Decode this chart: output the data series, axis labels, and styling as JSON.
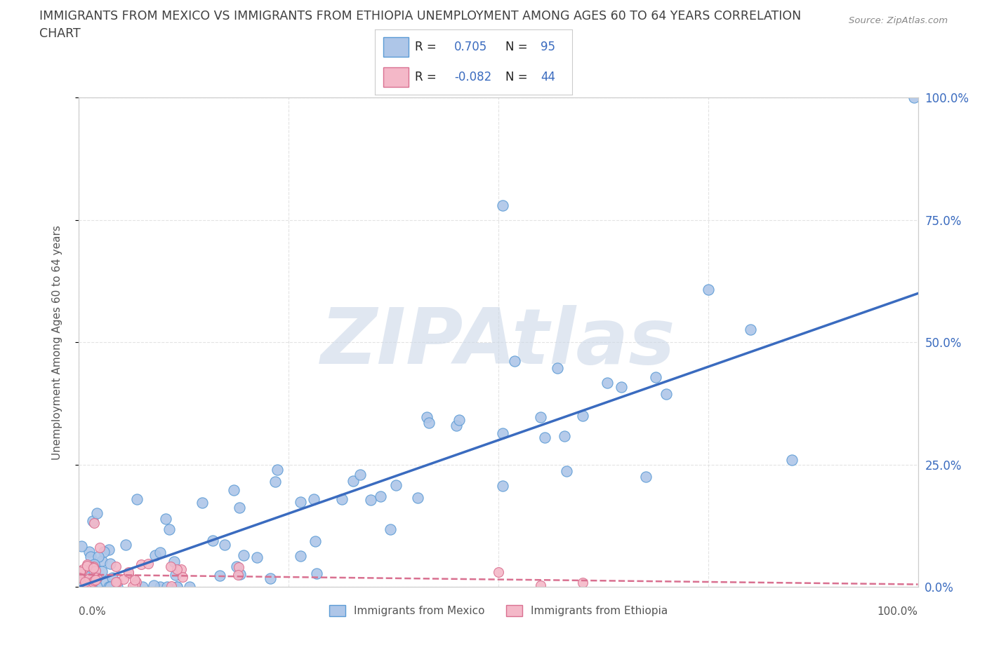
{
  "title_line1": "IMMIGRANTS FROM MEXICO VS IMMIGRANTS FROM ETHIOPIA UNEMPLOYMENT AMONG AGES 60 TO 64 YEARS CORRELATION",
  "title_line2": "CHART",
  "source": "Source: ZipAtlas.com",
  "ylabel": "Unemployment Among Ages 60 to 64 years",
  "ytick_values": [
    0,
    25,
    50,
    75,
    100
  ],
  "xtick_values": [
    0,
    25,
    50,
    75,
    100
  ],
  "series_mexico": {
    "label": "Immigrants from Mexico",
    "color": "#aec6e8",
    "edge_color": "#5b9bd5",
    "R": 0.705,
    "N": 95,
    "trend_color": "#3a6bbf",
    "trend_style": "-"
  },
  "series_ethiopia": {
    "label": "Immigrants from Ethiopia",
    "color": "#f4b8c8",
    "edge_color": "#d97090",
    "R": -0.082,
    "N": 44,
    "trend_color": "#d97090",
    "trend_style": "--"
  },
  "watermark": "ZIPAtlas",
  "watermark_color": "#ccd8e8",
  "background_color": "#ffffff",
  "grid_color": "#d8d8d8",
  "title_color": "#404040",
  "axis_color": "#555555",
  "legend_text_color": "#3a6bbf",
  "xlim": [
    0,
    100
  ],
  "ylim": [
    0,
    100
  ],
  "trend_mexico_x0": 0,
  "trend_mexico_y0": 0,
  "trend_mexico_x1": 100,
  "trend_mexico_y1": 60,
  "trend_ethiopia_x0": 0,
  "trend_ethiopia_y0": 2.5,
  "trend_ethiopia_x1": 100,
  "trend_ethiopia_y1": 0.5
}
